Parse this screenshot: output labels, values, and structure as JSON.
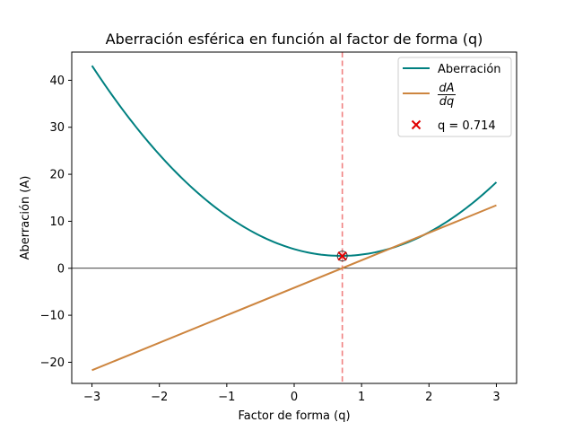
{
  "chart_data": {
    "type": "line",
    "title": "Aberración esférica en función al factor de forma (q)",
    "xlabel": "Factor de forma (q)",
    "ylabel": "Aberración (A)",
    "xlim": [
      -3.3,
      3.3
    ],
    "ylim": [
      -24.5,
      46
    ],
    "grid": false,
    "legend_position": "top-right",
    "x_ticks": [
      {
        "value": -3,
        "label": "−3"
      },
      {
        "value": -2,
        "label": "−2"
      },
      {
        "value": -1,
        "label": "−1"
      },
      {
        "value": 0,
        "label": "0"
      },
      {
        "value": 1,
        "label": "1"
      },
      {
        "value": 2,
        "label": "2"
      },
      {
        "value": 3,
        "label": "3"
      }
    ],
    "y_ticks": [
      {
        "value": -20,
        "label": "−20"
      },
      {
        "value": -10,
        "label": "−10"
      },
      {
        "value": 0,
        "label": "0"
      },
      {
        "value": 10,
        "label": "10"
      },
      {
        "value": 20,
        "label": "20"
      },
      {
        "value": 30,
        "label": "30"
      },
      {
        "value": 40,
        "label": "40"
      }
    ],
    "series": [
      {
        "name": "Aberración",
        "kind": "curve",
        "color": "#008080",
        "x": [
          -3.0,
          -2.5,
          -2.0,
          -1.5,
          -1.0,
          -0.5,
          0.0,
          0.5,
          0.714,
          1.0,
          1.5,
          2.0,
          2.5,
          3.0
        ],
        "y": [
          43.0,
          33.0,
          24.3,
          17.0,
          11.2,
          6.7,
          3.9,
          2.7,
          2.6,
          2.9,
          4.7,
          7.8,
          12.5,
          18.0
        ]
      },
      {
        "name": "dA/dq",
        "legend_numerator": "dA",
        "legend_denominator": "dq",
        "kind": "line",
        "color": "#cd853f",
        "x": [
          -3.0,
          3.0
        ],
        "y": [
          -21.7,
          13.4
        ]
      }
    ],
    "marker": {
      "label": "q = 0.714",
      "x": 0.714,
      "y": 2.6,
      "symbol": "x",
      "color": "#e00000"
    },
    "vertical_line": {
      "x": 0.714,
      "style": "dashed",
      "color": "#f08080"
    },
    "horizontal_line": {
      "y": 0,
      "color": "#000000"
    }
  }
}
